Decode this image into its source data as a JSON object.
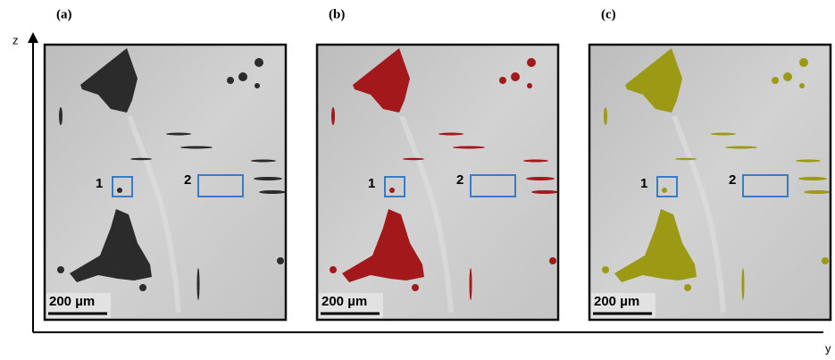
{
  "axes": {
    "vertical": "z",
    "horizontal": "y"
  },
  "panels": [
    {
      "label": "(a)",
      "scale_bar": "200 µm",
      "boxes": [
        "1",
        "2"
      ]
    },
    {
      "label": "(b)",
      "scale_bar": "200 µm",
      "boxes": [
        "1",
        "2"
      ]
    },
    {
      "label": "(c)",
      "scale_bar": "200 µm",
      "boxes": [
        "1",
        "2"
      ]
    }
  ]
}
